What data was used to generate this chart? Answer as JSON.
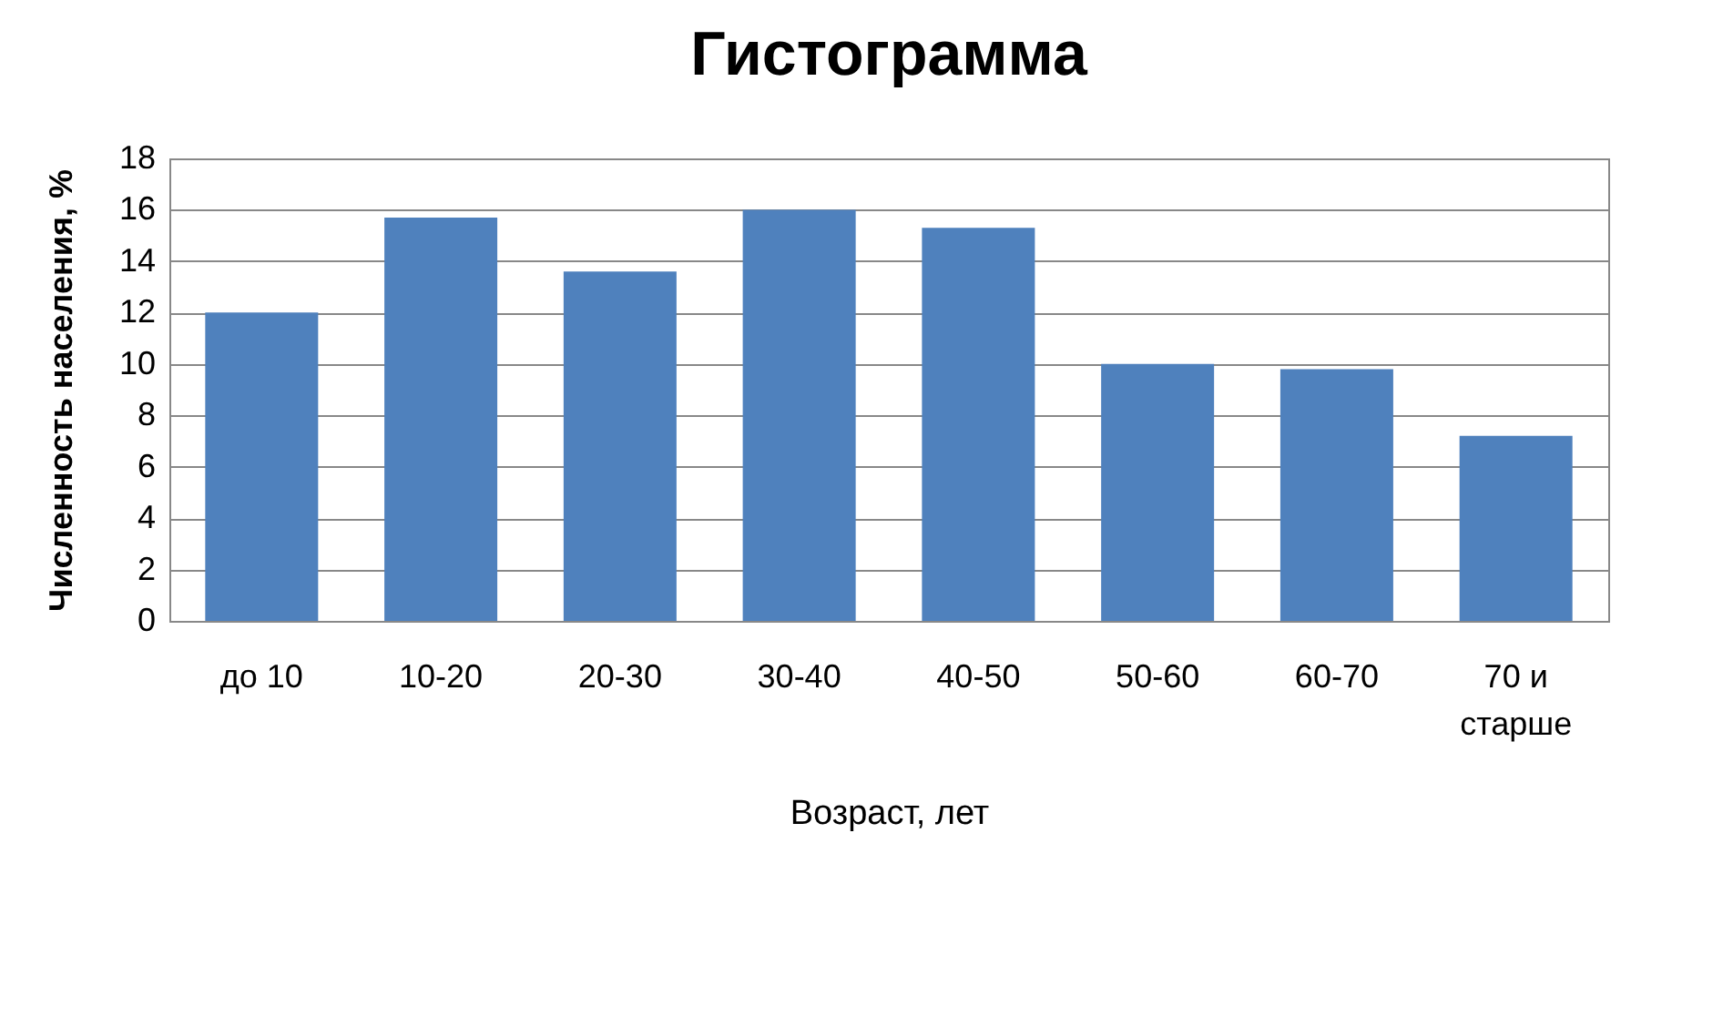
{
  "chart_data": {
    "type": "bar",
    "title": "Гистограмма",
    "xlabel": "Возраст, лет",
    "ylabel": "Численность населения, %",
    "categories": [
      "до 10",
      "10-20",
      "20-30",
      "30-40",
      "40-50",
      "50-60",
      "60-70",
      "70 и старше"
    ],
    "values": [
      12,
      15.7,
      13.6,
      16,
      15.3,
      10,
      9.8,
      7.2
    ],
    "color": "#4f81bd",
    "ylim": [
      0,
      18
    ],
    "yticks": [
      0,
      2,
      4,
      6,
      8,
      10,
      12,
      14,
      16,
      18
    ],
    "grid": "y",
    "legend": false
  }
}
